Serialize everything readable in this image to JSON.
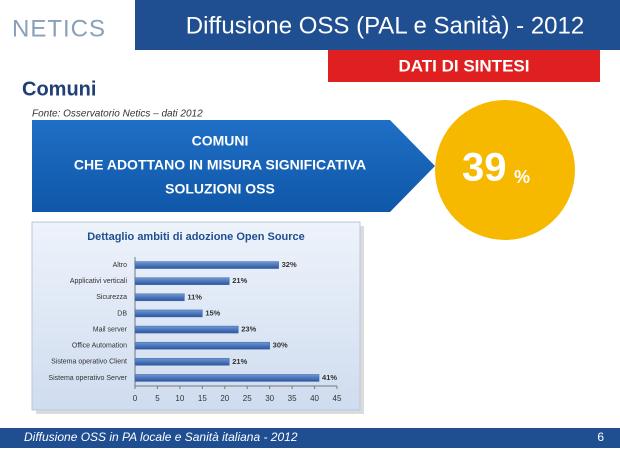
{
  "logo": "NETICS",
  "header": {
    "title": "Diffusione OSS (PAL e Sanità) - 2012",
    "badge": "DATI DI SINTESI"
  },
  "section": "Comuni",
  "source": "Fonte: Osservatorio Netics – dati 2012",
  "arrow": {
    "lines": [
      "COMUNI",
      "CHE ADOTTANO IN MISURA SIGNIFICATIVA",
      "SOLUZIONI OSS"
    ]
  },
  "headline": {
    "number": "39",
    "unit": "%"
  },
  "footer": {
    "text": "Diffusione OSS in PA locale e Sanità italiana - 2012",
    "page": "6"
  },
  "chart_data": {
    "type": "hbar",
    "title": "Dettaglio ambiti di adozione Open Source",
    "categories": [
      "Altro",
      "Applicativi verticali",
      "Sicurezza",
      "DB",
      "Mail server",
      "Office Automation",
      "Sistema operativo Client",
      "Sistema operativo Server"
    ],
    "values": [
      32,
      21,
      11,
      15,
      23,
      30,
      21,
      41
    ],
    "value_labels": [
      "32%",
      "21%",
      "11%",
      "15%",
      "23%",
      "30%",
      "21%",
      "41%"
    ],
    "color": "#3a68b0",
    "xlim": [
      0,
      45
    ],
    "xticks": [
      0,
      5,
      10,
      15,
      20,
      25,
      30,
      35,
      40,
      45
    ]
  }
}
